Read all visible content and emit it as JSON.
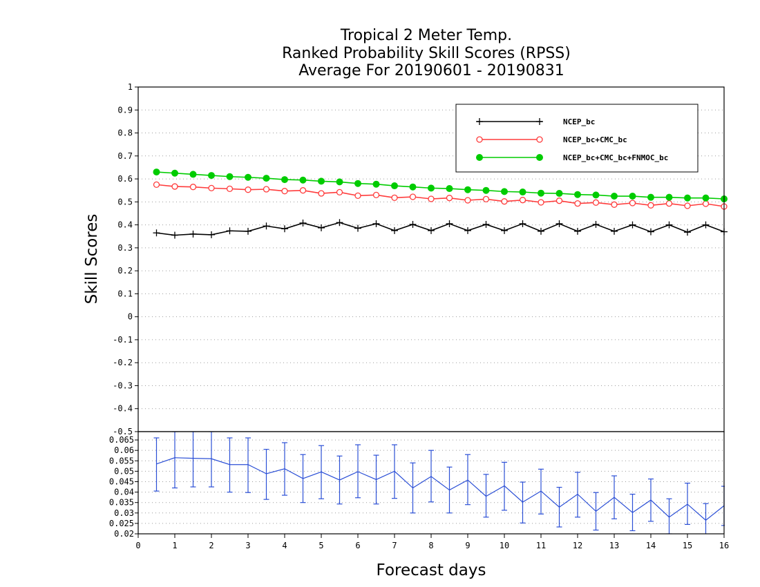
{
  "chart_data": [
    {
      "type": "line",
      "title": "Tropical 2 Meter Temp.",
      "subtitle": "Ranked Probability Skill Scores (RPSS)",
      "subtitle2": " Average For 20190601 - 20190831",
      "xlabel": "",
      "ylabel": "Skill Scores",
      "ylim": [
        -0.5,
        1
      ],
      "xlim": [
        0,
        16
      ],
      "yticks": [
        "1",
        "0.9",
        "0.8",
        "0.7",
        "0.6",
        "0.5",
        "0.4",
        "0.3",
        "0.2",
        "0.1",
        "0",
        "-0.1",
        "-0.2",
        "-0.3",
        "-0.4",
        "-0.5"
      ],
      "grid": true,
      "legend_position": "top-right",
      "x": [
        0.5,
        1,
        1.5,
        2,
        2.5,
        3,
        3.5,
        4,
        4.5,
        5,
        5.5,
        6,
        6.5,
        7,
        7.5,
        8,
        8.5,
        9,
        9.5,
        10,
        10.5,
        11,
        11.5,
        12,
        12.5,
        13,
        13.5,
        14,
        14.5,
        15,
        15.5,
        16
      ],
      "series": [
        {
          "name": "NCEP_bc",
          "color": "#000000",
          "marker": "plus",
          "values": [
            0.365,
            0.355,
            0.36,
            0.357,
            0.374,
            0.372,
            0.395,
            0.383,
            0.408,
            0.387,
            0.41,
            0.385,
            0.405,
            0.375,
            0.402,
            0.375,
            0.405,
            0.375,
            0.402,
            0.375,
            0.405,
            0.372,
            0.405,
            0.372,
            0.402,
            0.372,
            0.4,
            0.37,
            0.4,
            0.368,
            0.4,
            0.37
          ]
        },
        {
          "name": "NCEP_bc+CMC_bc",
          "color": "#ff3b3b",
          "marker": "open-circle",
          "values": [
            0.575,
            0.567,
            0.565,
            0.56,
            0.557,
            0.553,
            0.555,
            0.547,
            0.55,
            0.537,
            0.542,
            0.527,
            0.53,
            0.518,
            0.522,
            0.513,
            0.517,
            0.507,
            0.512,
            0.502,
            0.508,
            0.498,
            0.505,
            0.493,
            0.497,
            0.488,
            0.495,
            0.485,
            0.493,
            0.483,
            0.492,
            0.48
          ]
        },
        {
          "name": "NCEP_bc+CMC_bc+FNMOC_bc",
          "color": "#00cc00",
          "marker": "filled-circle",
          "values": [
            0.63,
            0.625,
            0.62,
            0.615,
            0.61,
            0.607,
            0.603,
            0.597,
            0.595,
            0.59,
            0.587,
            0.58,
            0.577,
            0.57,
            0.565,
            0.56,
            0.558,
            0.553,
            0.55,
            0.545,
            0.543,
            0.538,
            0.537,
            0.532,
            0.53,
            0.525,
            0.525,
            0.52,
            0.52,
            0.517,
            0.517,
            0.513
          ]
        }
      ]
    },
    {
      "type": "line",
      "xlabel": "Forecast days",
      "ylabel": "",
      "ylim": [
        0.02,
        0.069
      ],
      "xlim": [
        0,
        16
      ],
      "yticks": [
        "0.065",
        "0.06",
        "0.055",
        "0.05",
        "0.045",
        "0.04",
        "0.035",
        "0.03",
        "0.025",
        "0.02"
      ],
      "xticks": [
        "0",
        "1",
        "2",
        "3",
        "4",
        "5",
        "6",
        "7",
        "8",
        "9",
        "10",
        "11",
        "12",
        "13",
        "14",
        "15",
        "16"
      ],
      "grid": true,
      "x": [
        0.5,
        1,
        1.5,
        2,
        2.5,
        3,
        3.5,
        4,
        4.5,
        5,
        5.5,
        6,
        6.5,
        7,
        7.5,
        8,
        8.5,
        9,
        9.5,
        10,
        10.5,
        11,
        11.5,
        12,
        12.5,
        13,
        13.5,
        14,
        14.5,
        15,
        15.5,
        16
      ],
      "series": [
        {
          "name": "",
          "color": "#2b4fd6",
          "marker": "errorbar",
          "values": [
            0.0535,
            0.0565,
            0.0562,
            0.056,
            0.0532,
            0.0532,
            0.0488,
            0.0512,
            0.0465,
            0.0497,
            0.0458,
            0.0498,
            0.046,
            0.05,
            0.042,
            0.0475,
            0.041,
            0.0458,
            0.038,
            0.043,
            0.0352,
            0.0405,
            0.0328,
            0.039,
            0.0308,
            0.0375,
            0.0302,
            0.0362,
            0.028,
            0.0342,
            0.0265,
            0.0335
          ],
          "error_low": [
            0.0405,
            0.042,
            0.0425,
            0.0425,
            0.04,
            0.0398,
            0.0365,
            0.0385,
            0.035,
            0.0368,
            0.0343,
            0.0373,
            0.0343,
            0.037,
            0.03,
            0.0353,
            0.03,
            0.034,
            0.028,
            0.0313,
            0.0252,
            0.0295,
            0.0233,
            0.028,
            0.0218,
            0.0272,
            0.0215,
            0.026,
            0.02,
            0.0245,
            0.0195,
            0.024
          ],
          "error_high": [
            0.066,
            0.069,
            0.069,
            0.069,
            0.066,
            0.066,
            0.0605,
            0.0637,
            0.058,
            0.0623,
            0.0573,
            0.0627,
            0.0577,
            0.0627,
            0.054,
            0.06,
            0.052,
            0.058,
            0.0485,
            0.0543,
            0.0448,
            0.051,
            0.0423,
            0.0495,
            0.0398,
            0.0478,
            0.039,
            0.0463,
            0.0368,
            0.0443,
            0.0345,
            0.0428
          ]
        }
      ]
    }
  ]
}
